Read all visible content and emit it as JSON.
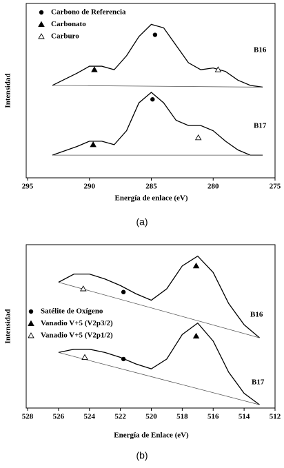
{
  "chart_data": [
    {
      "type": "line",
      "caption": "(a)",
      "xlabel": "Energía de enlace (eV)",
      "ylabel": "Intensidad",
      "xlim": [
        295,
        275
      ],
      "xticks": [
        295,
        290,
        285,
        280,
        275
      ],
      "ylim": [
        0,
        100
      ],
      "series": [
        {
          "name": "B16",
          "color": "#000000",
          "x": [
            293,
            291,
            290,
            289,
            288,
            287,
            286,
            285,
            284,
            283,
            282,
            281,
            280,
            279,
            278,
            277,
            276
          ],
          "values": [
            53,
            60,
            64,
            64,
            62,
            70,
            81,
            88,
            86,
            76,
            66,
            62,
            63,
            61,
            56,
            53,
            52
          ]
        },
        {
          "name": "B17",
          "color": "#000000",
          "x": [
            293,
            291,
            290,
            289,
            288,
            287,
            286,
            285,
            284,
            283,
            282,
            281,
            280,
            279,
            278,
            277,
            276
          ],
          "values": [
            13,
            18,
            21,
            21,
            19,
            27,
            43,
            49,
            43,
            33,
            30,
            30,
            27,
            21,
            16,
            13,
            13
          ]
        }
      ],
      "markers": [
        {
          "name": "Carbono de Referencia",
          "marker": "circle",
          "x": [
            284.7,
            284.9
          ],
          "values": [
            82,
            45
          ]
        },
        {
          "name": "Carbonato",
          "marker": "triangle",
          "x": [
            289.6,
            289.7
          ],
          "values": [
            62,
            19
          ]
        },
        {
          "name": "Carburo",
          "marker": "triangle-open",
          "x": [
            279.6,
            281.2
          ],
          "values": [
            62,
            23
          ]
        }
      ]
    },
    {
      "type": "line",
      "caption": "(b)",
      "xlabel": "Energía de Enlace (eV)",
      "ylabel": "Intensidad",
      "xlim": [
        528,
        512
      ],
      "xticks": [
        528,
        526,
        524,
        522,
        520,
        518,
        516,
        514,
        512
      ],
      "ylim": [
        0,
        100
      ],
      "series": [
        {
          "name": "B16",
          "color": "#000000",
          "x": [
            526,
            525,
            524,
            523,
            522,
            521,
            520,
            519,
            518,
            517,
            516,
            515,
            514,
            513
          ],
          "values": [
            77,
            82,
            82,
            79,
            75,
            70,
            66,
            73,
            87,
            93,
            83,
            64,
            51,
            43
          ]
        },
        {
          "name": "B17",
          "color": "#000000",
          "x": [
            526,
            525,
            524,
            523,
            522,
            521,
            520,
            519,
            518,
            517,
            516,
            515,
            514,
            513
          ],
          "values": [
            34,
            36,
            36,
            34,
            31,
            27,
            24,
            30,
            45,
            52,
            41,
            22,
            9,
            2
          ]
        }
      ],
      "markers": [
        {
          "name": "Satélite de Oxígeno",
          "marker": "circle",
          "x": [
            521.8,
            521.8
          ],
          "values": [
            71,
            30
          ]
        },
        {
          "name": "Vanadio V+5 (V2p3/2)",
          "marker": "triangle",
          "x": [
            517.1,
            517.1
          ],
          "values": [
            87,
            44
          ]
        },
        {
          "name": "Vanadio V+5 (V2p1/2)",
          "marker": "triangle-open",
          "x": [
            524.4,
            524.3
          ],
          "values": [
            73,
            31
          ]
        }
      ]
    }
  ]
}
